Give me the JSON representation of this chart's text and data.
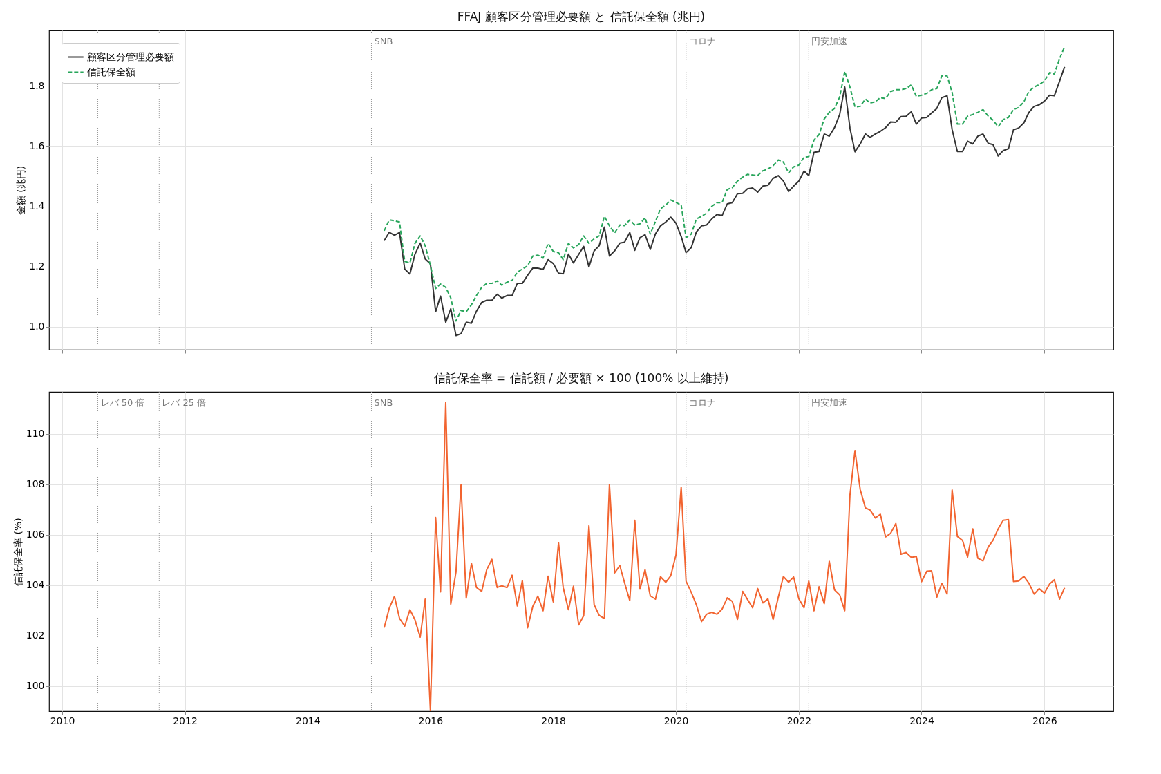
{
  "chart_data": [
    {
      "type": "line",
      "title": "FFAJ 顧客区分管理必要額 と 信託保全額 (兆円)",
      "ylabel": "金額 (兆円)",
      "x": [
        "2015-04",
        "2015-05",
        "2015-06",
        "2015-07",
        "2015-08",
        "2015-09",
        "2015-10",
        "2015-11",
        "2015-12",
        "2016-01",
        "2016-02",
        "2016-03",
        "2016-04",
        "2016-05",
        "2016-06",
        "2016-07",
        "2016-08",
        "2016-09",
        "2016-10",
        "2016-11",
        "2016-12",
        "2017-01",
        "2017-02",
        "2017-03",
        "2017-04",
        "2017-05",
        "2017-06",
        "2017-07",
        "2017-08",
        "2017-09",
        "2017-10",
        "2017-11",
        "2017-12",
        "2018-01",
        "2018-02",
        "2018-03",
        "2018-04",
        "2018-05",
        "2018-06",
        "2018-07",
        "2018-08",
        "2018-09",
        "2018-10",
        "2018-11",
        "2018-12",
        "2019-01",
        "2019-02",
        "2019-03",
        "2019-04",
        "2019-05",
        "2019-06",
        "2019-07",
        "2019-08",
        "2019-09",
        "2019-10",
        "2019-11",
        "2019-12",
        "2020-01",
        "2020-02",
        "2020-03",
        "2020-04",
        "2020-05",
        "2020-06",
        "2020-07",
        "2020-08",
        "2020-09",
        "2020-10",
        "2020-11",
        "2020-12",
        "2021-01",
        "2021-02",
        "2021-03",
        "2021-04",
        "2021-05",
        "2021-06",
        "2021-07",
        "2021-08",
        "2021-09",
        "2021-10",
        "2021-11",
        "2021-12",
        "2022-01",
        "2022-02",
        "2022-03",
        "2022-04",
        "2022-05",
        "2022-06",
        "2022-07",
        "2022-08",
        "2022-09",
        "2022-10",
        "2022-11",
        "2022-12",
        "2023-01",
        "2023-02",
        "2023-03",
        "2023-04",
        "2023-05",
        "2023-06",
        "2023-07",
        "2023-08",
        "2023-09",
        "2023-10",
        "2023-11",
        "2023-12",
        "2024-01",
        "2024-02",
        "2024-03",
        "2024-04",
        "2024-05",
        "2024-06",
        "2024-07",
        "2024-08",
        "2024-09",
        "2024-10",
        "2024-11",
        "2024-12",
        "2025-01",
        "2025-02",
        "2025-03",
        "2025-04",
        "2025-05",
        "2025-06",
        "2025-07",
        "2025-08",
        "2025-09",
        "2025-10",
        "2025-11",
        "2025-12",
        "2026-01",
        "2026-02",
        "2026-03",
        "2026-04",
        "2026-05"
      ],
      "series": [
        {
          "name": "顧客区分管理必要額",
          "color": "#333333",
          "line_style": "solid",
          "values": [
            1.286,
            1.314,
            1.304,
            1.313,
            1.192,
            1.175,
            1.241,
            1.278,
            1.225,
            1.209,
            1.05,
            1.102,
            1.015,
            1.06,
            0.971,
            0.977,
            1.015,
            1.012,
            1.052,
            1.081,
            1.088,
            1.088,
            1.108,
            1.095,
            1.104,
            1.104,
            1.144,
            1.144,
            1.171,
            1.195,
            1.195,
            1.19,
            1.223,
            1.21,
            1.178,
            1.176,
            1.241,
            1.212,
            1.24,
            1.267,
            1.199,
            1.252,
            1.269,
            1.331,
            1.235,
            1.252,
            1.278,
            1.281,
            1.313,
            1.254,
            1.296,
            1.306,
            1.257,
            1.309,
            1.335,
            1.348,
            1.364,
            1.344,
            1.3,
            1.246,
            1.263,
            1.315,
            1.335,
            1.338,
            1.358,
            1.373,
            1.369,
            1.408,
            1.412,
            1.442,
            1.443,
            1.458,
            1.461,
            1.447,
            1.467,
            1.47,
            1.493,
            1.502,
            1.484,
            1.449,
            1.467,
            1.484,
            1.517,
            1.502,
            1.579,
            1.582,
            1.64,
            1.633,
            1.661,
            1.705,
            1.796,
            1.66,
            1.581,
            1.607,
            1.64,
            1.629,
            1.64,
            1.649,
            1.661,
            1.68,
            1.679,
            1.698,
            1.699,
            1.714,
            1.673,
            1.693,
            1.695,
            1.71,
            1.725,
            1.761,
            1.767,
            1.655,
            1.582,
            1.582,
            1.616,
            1.607,
            1.633,
            1.64,
            1.609,
            1.605,
            1.567,
            1.585,
            1.591,
            1.654,
            1.66,
            1.677,
            1.712,
            1.732,
            1.737,
            1.749,
            1.769,
            1.767,
            1.815,
            1.863
          ]
        },
        {
          "name": "信託保全額",
          "color": "#27a55a",
          "line_style": "dashed",
          "values": [
            1.319,
            1.355,
            1.352,
            1.348,
            1.217,
            1.212,
            1.277,
            1.302,
            1.269,
            1.204,
            1.127,
            1.142,
            1.131,
            1.096,
            1.019,
            1.054,
            1.05,
            1.073,
            1.104,
            1.131,
            1.144,
            1.144,
            1.152,
            1.138,
            1.148,
            1.154,
            1.181,
            1.192,
            1.202,
            1.235,
            1.238,
            1.228,
            1.277,
            1.25,
            1.246,
            1.223,
            1.277,
            1.262,
            1.273,
            1.302,
            1.277,
            1.292,
            1.302,
            1.367,
            1.335,
            1.312,
            1.338,
            1.336,
            1.355,
            1.338,
            1.342,
            1.362,
            1.308,
            1.35,
            1.392,
            1.404,
            1.421,
            1.413,
            1.404,
            1.296,
            1.308,
            1.358,
            1.367,
            1.377,
            1.4,
            1.412,
            1.412,
            1.456,
            1.462,
            1.484,
            1.497,
            1.506,
            1.504,
            1.502,
            1.518,
            1.524,
            1.535,
            1.554,
            1.547,
            1.511,
            1.531,
            1.537,
            1.563,
            1.565,
            1.62,
            1.638,
            1.69,
            1.712,
            1.725,
            1.763,
            1.848,
            1.796,
            1.73,
            1.732,
            1.756,
            1.743,
            1.747,
            1.761,
            1.758,
            1.781,
            1.787,
            1.787,
            1.791,
            1.803,
            1.765,
            1.769,
            1.775,
            1.787,
            1.791,
            1.833,
            1.833,
            1.778,
            1.673,
            1.673,
            1.699,
            1.705,
            1.712,
            1.721,
            1.699,
            1.686,
            1.664,
            1.688,
            1.695,
            1.721,
            1.728,
            1.747,
            1.782,
            1.796,
            1.804,
            1.816,
            1.844,
            1.839,
            1.89,
            1.93
          ]
        }
      ],
      "xlim": [
        "2009-10-15",
        "2027-02-15"
      ],
      "xticks": [
        "2010",
        "2012",
        "2014",
        "2016",
        "2018",
        "2020",
        "2022",
        "2024",
        "2026"
      ],
      "ylim": [
        0.924,
        1.984
      ],
      "yticks": [
        {
          "value": 1,
          "label": "1.0"
        },
        1.2,
        1.4,
        1.6,
        1.8
      ],
      "ref_lines": [
        {
          "axis": "x",
          "value": "2010-08-01",
          "label": null,
          "color": "#999999",
          "line_style": "dotted"
        },
        {
          "axis": "x",
          "value": "2011-08-01",
          "label": null,
          "color": "#999999",
          "line_style": "dotted"
        },
        {
          "axis": "x",
          "value": "2015-01-15",
          "label": "SNB",
          "color": "#999999",
          "line_style": "dotted"
        },
        {
          "axis": "x",
          "value": "2020-03-01",
          "label": "コロナ",
          "color": "#999999",
          "line_style": "dotted"
        },
        {
          "axis": "x",
          "value": "2022-03-01",
          "label": "円安加速",
          "color": "#999999",
          "line_style": "dotted"
        }
      ],
      "grid": true,
      "legend": "top left",
      "tick_labels": "y"
    },
    {
      "type": "line",
      "title": "信託保全率 = 信託額 / 必要額 × 100 (100% 以上維持)",
      "ylabel": "信託保全率 (%)",
      "x": [
        "2015-04",
        "2015-05",
        "2015-06",
        "2015-07",
        "2015-08",
        "2015-09",
        "2015-10",
        "2015-11",
        "2015-12",
        "2016-01",
        "2016-02",
        "2016-03",
        "2016-04",
        "2016-05",
        "2016-06",
        "2016-07",
        "2016-08",
        "2016-09",
        "2016-10",
        "2016-11",
        "2016-12",
        "2017-01",
        "2017-02",
        "2017-03",
        "2017-04",
        "2017-05",
        "2017-06",
        "2017-07",
        "2017-08",
        "2017-09",
        "2017-10",
        "2017-11",
        "2017-12",
        "2018-01",
        "2018-02",
        "2018-03",
        "2018-04",
        "2018-05",
        "2018-06",
        "2018-07",
        "2018-08",
        "2018-09",
        "2018-10",
        "2018-11",
        "2018-12",
        "2019-01",
        "2019-02",
        "2019-03",
        "2019-04",
        "2019-05",
        "2019-06",
        "2019-07",
        "2019-08",
        "2019-09",
        "2019-10",
        "2019-11",
        "2019-12",
        "2020-01",
        "2020-02",
        "2020-03",
        "2020-04",
        "2020-05",
        "2020-06",
        "2020-07",
        "2020-08",
        "2020-09",
        "2020-10",
        "2020-11",
        "2020-12",
        "2021-01",
        "2021-02",
        "2021-03",
        "2021-04",
        "2021-05",
        "2021-06",
        "2021-07",
        "2021-08",
        "2021-09",
        "2021-10",
        "2021-11",
        "2021-12",
        "2022-01",
        "2022-02",
        "2022-03",
        "2022-04",
        "2022-05",
        "2022-06",
        "2022-07",
        "2022-08",
        "2022-09",
        "2022-10",
        "2022-11",
        "2022-12",
        "2023-01",
        "2023-02",
        "2023-03",
        "2023-04",
        "2023-05",
        "2023-06",
        "2023-07",
        "2023-08",
        "2023-09",
        "2023-10",
        "2023-11",
        "2023-12",
        "2024-01",
        "2024-02",
        "2024-03",
        "2024-04",
        "2024-05",
        "2024-06",
        "2024-07",
        "2024-08",
        "2024-09",
        "2024-10",
        "2024-11",
        "2024-12",
        "2025-01",
        "2025-02",
        "2025-03",
        "2025-04",
        "2025-05",
        "2025-06",
        "2025-07",
        "2025-08",
        "2025-09",
        "2025-10",
        "2025-11",
        "2025-12",
        "2026-01",
        "2026-02",
        "2026-03",
        "2026-04",
        "2026-05"
      ],
      "series": [
        {
          "color": "#f26430",
          "line_style": "solid",
          "values": [
            102.31,
            103.08,
            103.55,
            102.68,
            102.37,
            103.02,
            102.62,
            101.93,
            103.44,
            99.0,
            106.68,
            103.73,
            111.24,
            103.24,
            104.51,
            107.97,
            103.48,
            104.86,
            103.9,
            103.75,
            104.61,
            105.02,
            103.9,
            103.97,
            103.9,
            104.39,
            103.17,
            104.18,
            102.3,
            103.15,
            103.56,
            102.98,
            104.35,
            103.33,
            105.68,
            103.9,
            103.02,
            103.95,
            102.42,
            102.79,
            106.35,
            103.22,
            102.8,
            102.67,
            107.99,
            104.48,
            104.77,
            104.09,
            103.38,
            106.57,
            103.84,
            104.61,
            103.57,
            103.44,
            104.33,
            104.11,
            104.37,
            105.19,
            107.88,
            104.15,
            103.71,
            103.22,
            102.55,
            102.84,
            102.92,
            102.84,
            103.04,
            103.49,
            103.35,
            102.64,
            103.75,
            103.43,
            103.1,
            103.86,
            103.29,
            103.45,
            102.64,
            103.52,
            104.34,
            104.11,
            104.32,
            103.45,
            103.1,
            104.16,
            102.98,
            103.93,
            103.26,
            104.94,
            103.81,
            103.61,
            102.98,
            107.56,
            109.33,
            107.79,
            107.06,
            106.97,
            106.66,
            106.81,
            105.91,
            106.05,
            106.44,
            105.22,
            105.29,
            105.1,
            105.13,
            104.13,
            104.55,
            104.56,
            103.52,
            104.07,
            103.64,
            107.77,
            105.93,
            105.77,
            105.11,
            106.23,
            105.06,
            104.96,
            105.51,
            105.77,
            106.23,
            106.57,
            106.6,
            104.14,
            104.16,
            104.34,
            104.07,
            103.64,
            103.86,
            103.68,
            104.04,
            104.21,
            103.44,
            103.89
          ]
        }
      ],
      "xlim": [
        "2009-10-15",
        "2027-02-15"
      ],
      "xticks": [
        "2010",
        "2012",
        "2014",
        "2016",
        "2018",
        "2020",
        "2022",
        "2024",
        "2026"
      ],
      "ylim": [
        99,
        111.66
      ],
      "yticks": [
        100,
        102,
        104,
        106,
        108,
        110
      ],
      "ref_lines": [
        {
          "axis": "x",
          "value": "2010-08-01",
          "label": "レバ 50 倍",
          "color": "#999999",
          "line_style": "dotted"
        },
        {
          "axis": "x",
          "value": "2011-08-01",
          "label": "レバ 25 倍",
          "color": "#999999",
          "line_style": "dotted"
        },
        {
          "axis": "x",
          "value": "2015-01-15",
          "label": "SNB",
          "color": "#999999",
          "line_style": "dotted"
        },
        {
          "axis": "x",
          "value": "2020-03-01",
          "label": "コロナ",
          "color": "#999999",
          "line_style": "dotted"
        },
        {
          "axis": "x",
          "value": "2022-03-01",
          "label": "円安加速",
          "color": "#999999",
          "line_style": "dotted"
        },
        {
          "axis": "y",
          "value": 100,
          "color": "#555555",
          "line_style": "dotted"
        }
      ],
      "grid": true
    }
  ]
}
